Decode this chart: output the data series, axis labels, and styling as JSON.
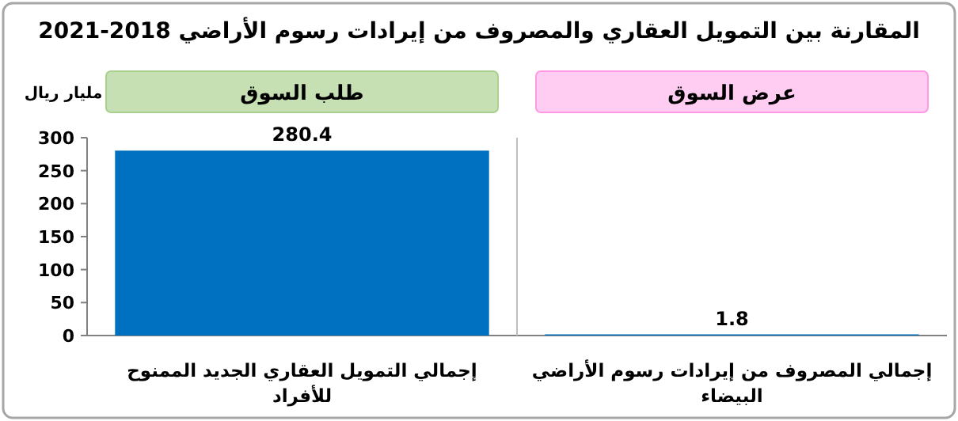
{
  "chart_data": {
    "type": "bar",
    "title": "المقارنة بين التمويل العقاري والمصروف من إيرادات رسوم الأراضي 2018-2021",
    "ylabel": "مليار ريال",
    "categories": [
      "إجمالي التمويل العقاري الجديد الممنوح للأفراد",
      "إجمالي المصروف من إيرادات رسوم الأراضي البيضاء"
    ],
    "values": [
      280.4,
      1.8
    ],
    "color": "#0070c0",
    "data_labels": true,
    "ylim": [
      0,
      300
    ],
    "yticks": [
      0,
      50,
      100,
      150,
      200,
      250,
      300
    ],
    "grid": false,
    "annotations": [
      "طلب السوق",
      "عرض السوق"
    ]
  }
}
